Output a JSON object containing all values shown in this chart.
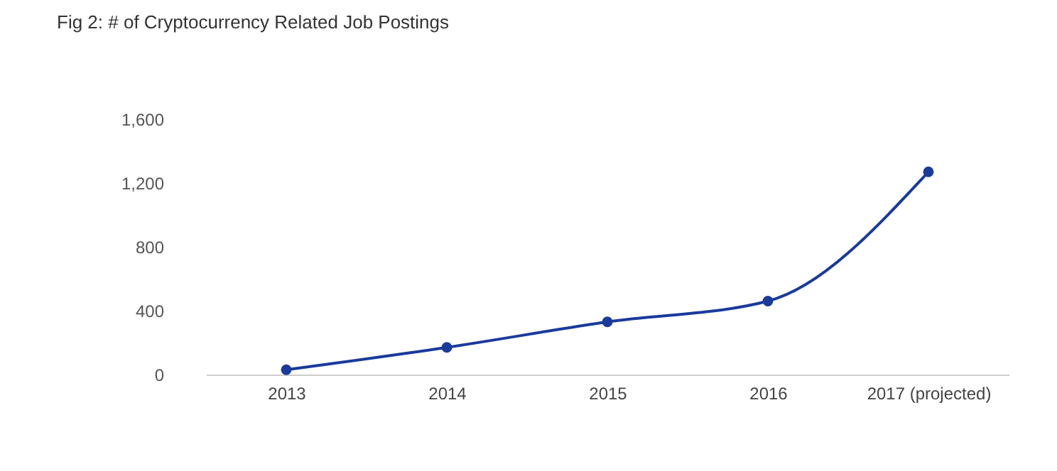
{
  "chart_data": {
    "type": "line",
    "title": "Fig 2: # of Cryptocurrency Related Job Postings",
    "categories": [
      "2013",
      "2014",
      "2015",
      "2016",
      "2017 (projected)"
    ],
    "series": [
      {
        "color": "#1a3a9c",
        "values": [
          30,
          170,
          330,
          460,
          1270
        ]
      }
    ],
    "ylim": [
      0,
      1600
    ],
    "yticks": [
      0,
      400,
      800,
      {
        "value": 1200,
        "label": "1,200"
      },
      {
        "value": 1600,
        "label": "1,600"
      }
    ],
    "grid": false,
    "marker": "circle",
    "line_style": "solid",
    "legend": false
  }
}
